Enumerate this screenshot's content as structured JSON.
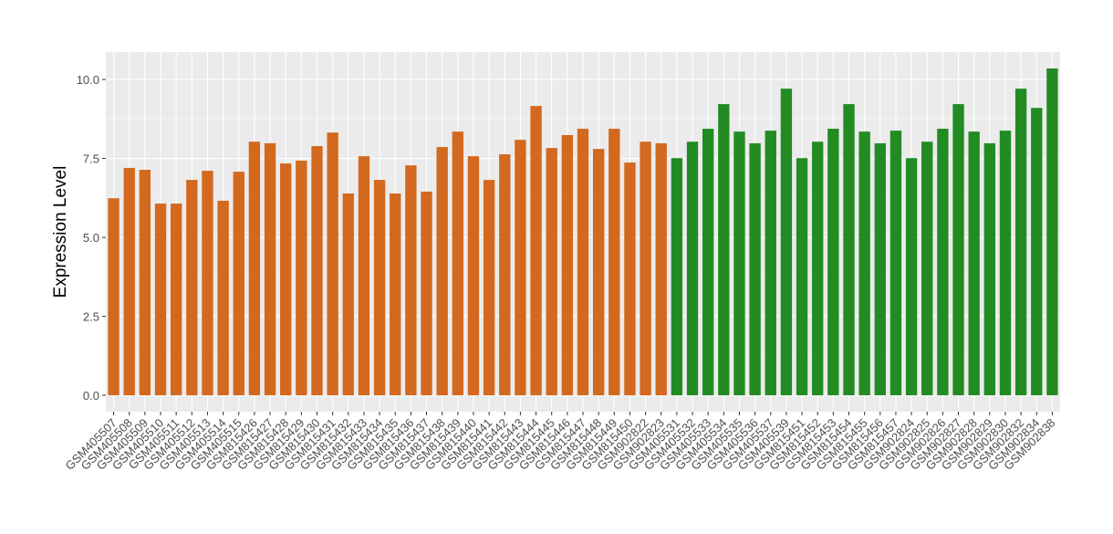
{
  "chart_data": {
    "type": "bar",
    "title": "",
    "xlabel": "",
    "ylabel": "Expression Level",
    "ylim": [
      -0.52,
      10.87
    ],
    "yticks": [
      0.0,
      2.5,
      5.0,
      7.5,
      10.0
    ],
    "ytick_labels": [
      "0.0",
      "2.5",
      "5.0",
      "7.5",
      "10.0"
    ],
    "grid": true,
    "colors": {
      "group1": "#D2691E",
      "group2": "#228B22",
      "panel": "#EBEBEB",
      "grid": "#FFFFFF"
    },
    "categories": [
      "GSM405507",
      "GSM405508",
      "GSM405509",
      "GSM405510",
      "GSM405511",
      "GSM405512",
      "GSM405513",
      "GSM405514",
      "GSM405515",
      "GSM815426",
      "GSM815427",
      "GSM815428",
      "GSM815429",
      "GSM815430",
      "GSM815431",
      "GSM815432",
      "GSM815433",
      "GSM815434",
      "GSM815435",
      "GSM815436",
      "GSM815437",
      "GSM815438",
      "GSM815439",
      "GSM815440",
      "GSM815441",
      "GSM815442",
      "GSM815443",
      "GSM815444",
      "GSM815445",
      "GSM815446",
      "GSM815447",
      "GSM815448",
      "GSM815449",
      "GSM815450",
      "GSM902822",
      "GSM902823",
      "GSM405531",
      "GSM405532",
      "GSM405533",
      "GSM405534",
      "GSM405535",
      "GSM405536",
      "GSM405537",
      "GSM405539",
      "GSM815451",
      "GSM815452",
      "GSM815453",
      "GSM815454",
      "GSM815455",
      "GSM815456",
      "GSM815457",
      "GSM902824",
      "GSM902825",
      "GSM902826",
      "GSM902827",
      "GSM902828",
      "GSM902829",
      "GSM902830",
      "GSM902832",
      "GSM902834",
      "GSM902838"
    ],
    "values": [
      6.24,
      7.2,
      7.14,
      6.07,
      6.07,
      6.82,
      7.11,
      6.16,
      7.08,
      8.03,
      7.98,
      7.34,
      7.43,
      7.89,
      8.32,
      6.39,
      7.57,
      6.82,
      6.39,
      7.28,
      6.45,
      7.86,
      8.35,
      7.57,
      6.82,
      7.63,
      8.09,
      9.16,
      7.83,
      8.24,
      8.44,
      7.8,
      8.44,
      7.37,
      8.03,
      7.98,
      7.51,
      8.03,
      8.44,
      9.22,
      8.35,
      7.98,
      8.38,
      9.71,
      7.51,
      8.03,
      8.44,
      9.22,
      8.35,
      7.98,
      8.38,
      7.51,
      8.03,
      8.44,
      9.22,
      8.35,
      7.98,
      8.38,
      9.71,
      9.1,
      10.35
    ],
    "groups": [
      1,
      1,
      1,
      1,
      1,
      1,
      1,
      1,
      1,
      1,
      1,
      1,
      1,
      1,
      1,
      1,
      1,
      1,
      1,
      1,
      1,
      1,
      1,
      1,
      1,
      1,
      1,
      1,
      1,
      1,
      1,
      1,
      1,
      1,
      1,
      1,
      2,
      2,
      2,
      2,
      2,
      2,
      2,
      2,
      2,
      2,
      2,
      2,
      2,
      2,
      2,
      2,
      2,
      2,
      2,
      2,
      2,
      2,
      2,
      2,
      2
    ]
  }
}
